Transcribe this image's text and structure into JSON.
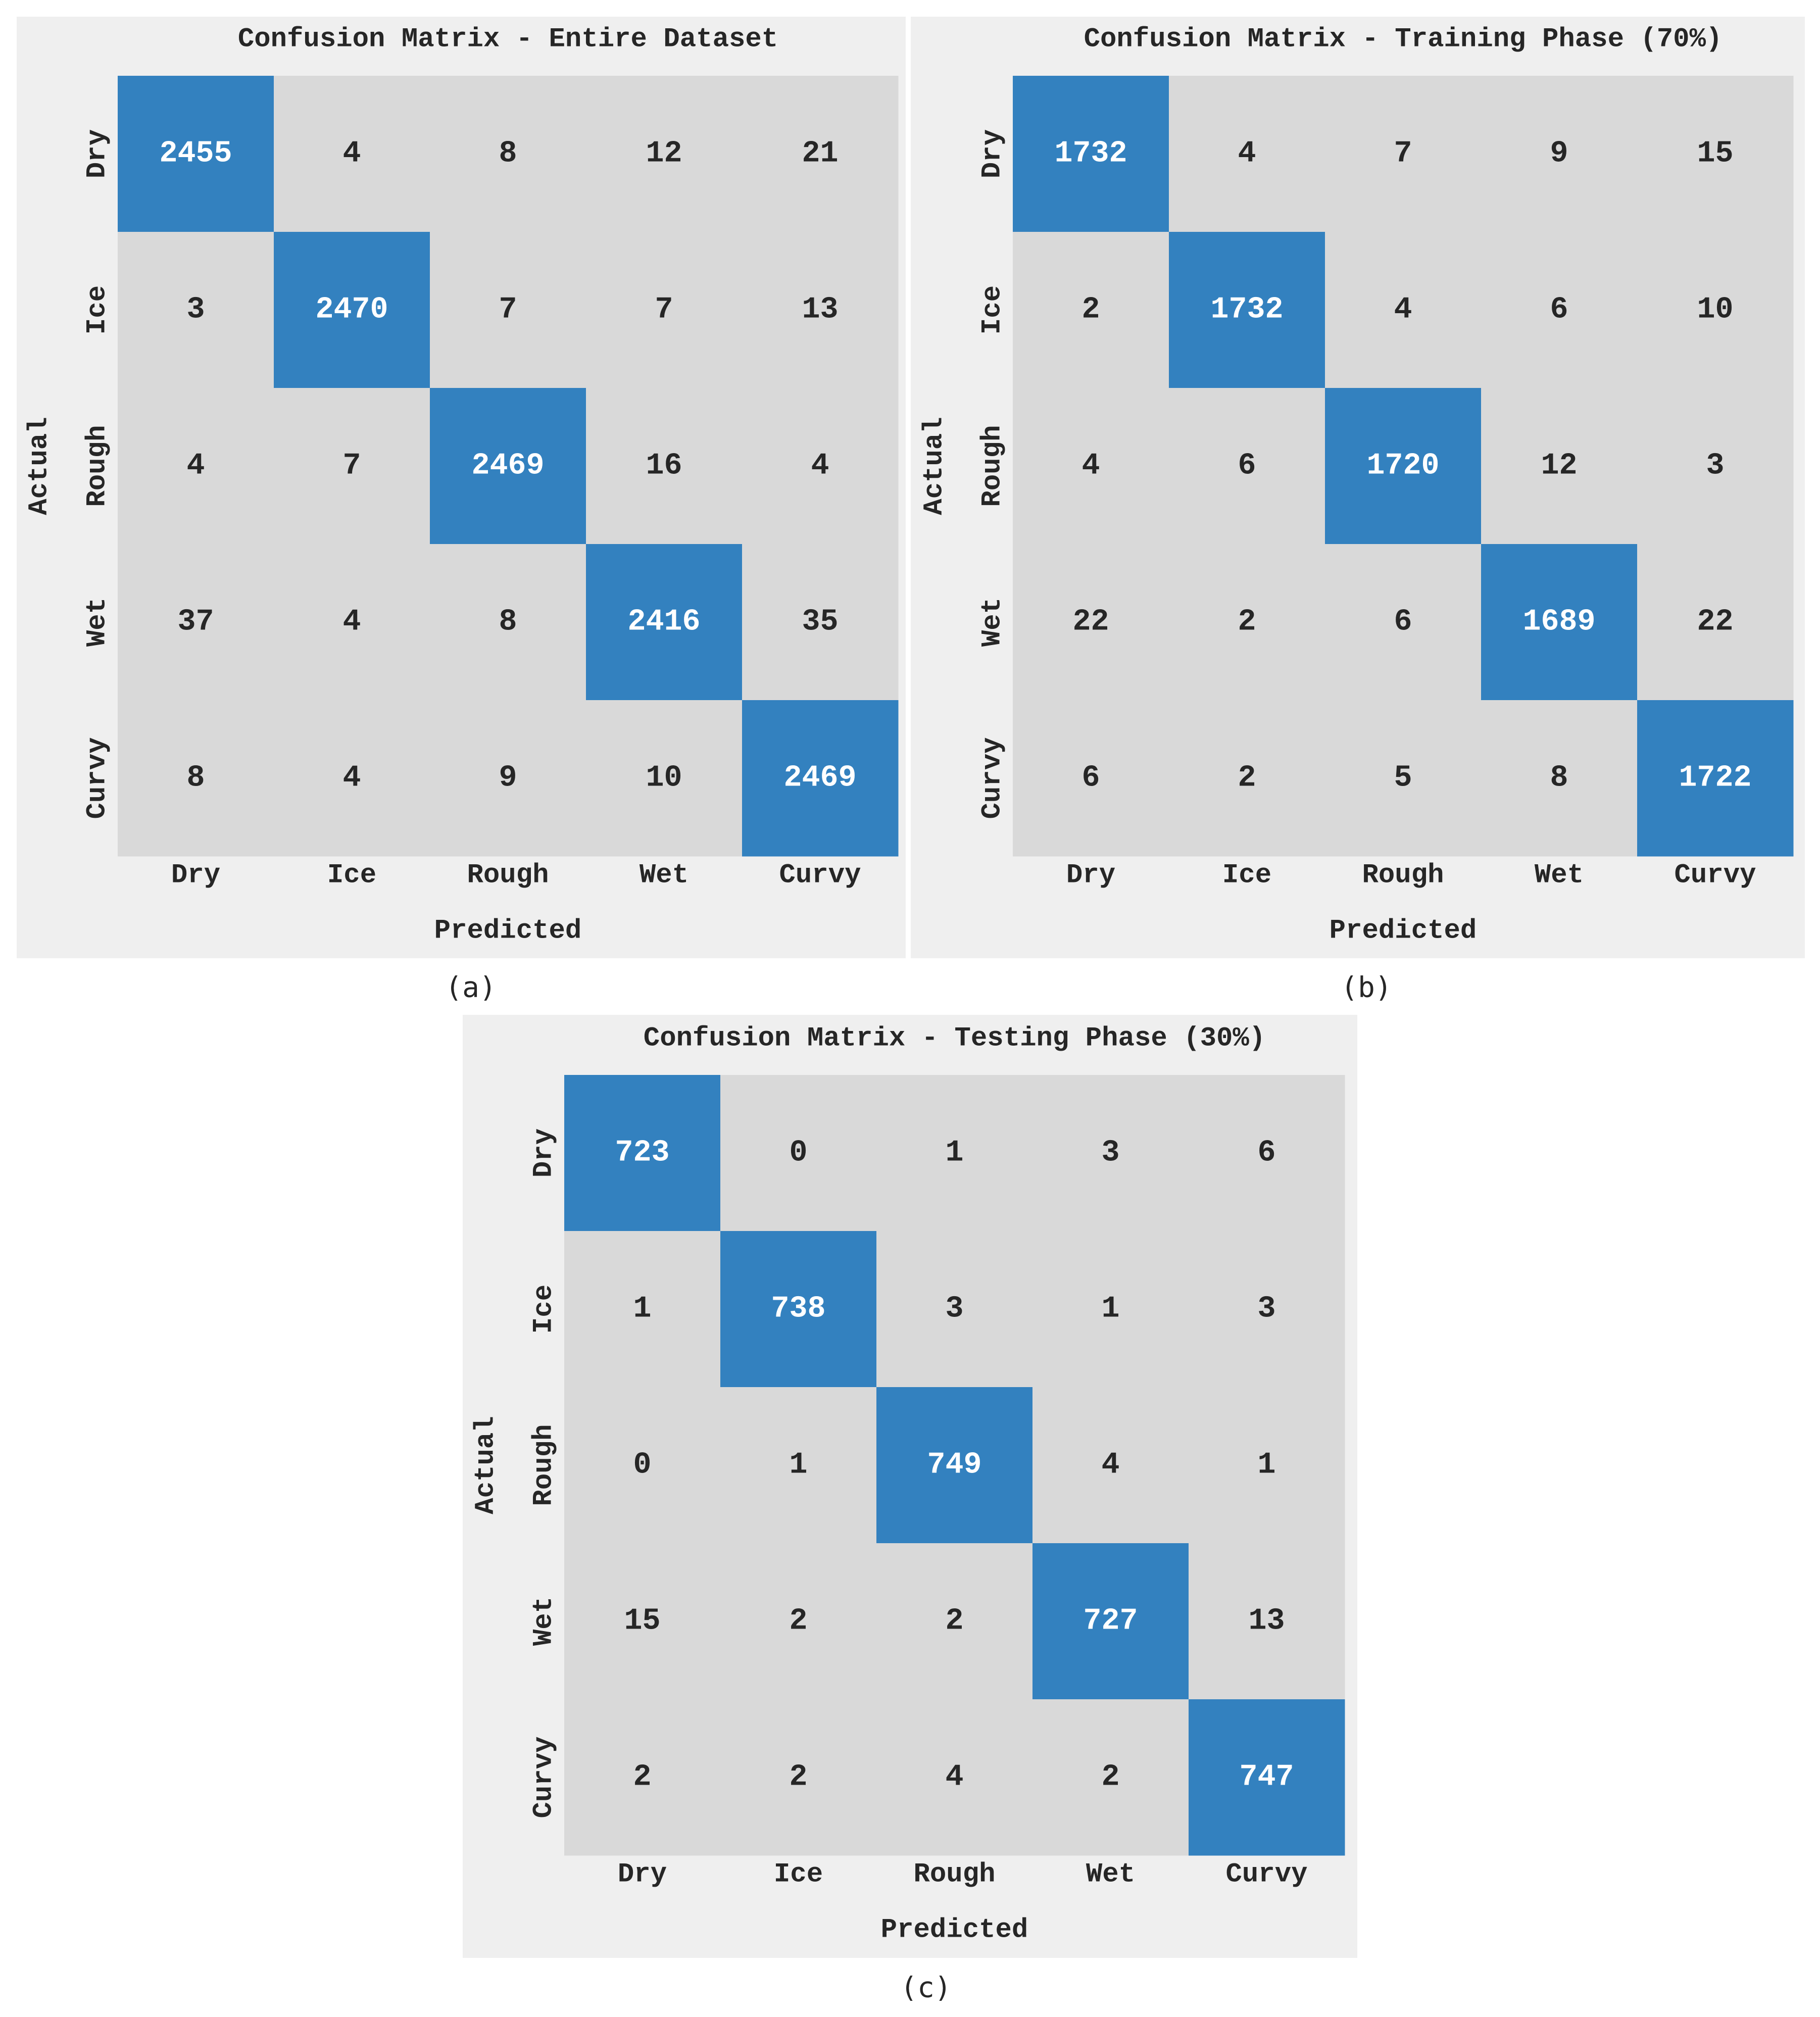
{
  "colors": {
    "background": "#ffffff",
    "panel_background": "#efefef",
    "off_diagonal": "#d9d9d9",
    "diagonal": "#3381bf",
    "text_dark": "#262626",
    "text_light": "#ffffff"
  },
  "chart_data": [
    {
      "type": "heatmap",
      "panel": "(a)",
      "title": "Confusion Matrix - Entire Dataset",
      "xlabel": "Predicted",
      "ylabel": "Actual",
      "x_categories": [
        "Dry",
        "Ice",
        "Rough",
        "Wet",
        "Curvy"
      ],
      "y_categories": [
        "Dry",
        "Ice",
        "Rough",
        "Wet",
        "Curvy"
      ],
      "values": [
        [
          2455,
          4,
          8,
          12,
          21
        ],
        [
          3,
          2470,
          7,
          7,
          13
        ],
        [
          4,
          7,
          2469,
          16,
          4
        ],
        [
          37,
          4,
          8,
          2416,
          35
        ],
        [
          8,
          4,
          9,
          10,
          2469
        ]
      ]
    },
    {
      "type": "heatmap",
      "panel": "(b)",
      "title": "Confusion Matrix - Training Phase (70%)",
      "xlabel": "Predicted",
      "ylabel": "Actual",
      "x_categories": [
        "Dry",
        "Ice",
        "Rough",
        "Wet",
        "Curvy"
      ],
      "y_categories": [
        "Dry",
        "Ice",
        "Rough",
        "Wet",
        "Curvy"
      ],
      "values": [
        [
          1732,
          4,
          7,
          9,
          15
        ],
        [
          2,
          1732,
          4,
          6,
          10
        ],
        [
          4,
          6,
          1720,
          12,
          3
        ],
        [
          22,
          2,
          6,
          1689,
          22
        ],
        [
          6,
          2,
          5,
          8,
          1722
        ]
      ]
    },
    {
      "type": "heatmap",
      "panel": "(c)",
      "title": "Confusion Matrix - Testing Phase (30%)",
      "xlabel": "Predicted",
      "ylabel": "Actual",
      "x_categories": [
        "Dry",
        "Ice",
        "Rough",
        "Wet",
        "Curvy"
      ],
      "y_categories": [
        "Dry",
        "Ice",
        "Rough",
        "Wet",
        "Curvy"
      ],
      "values": [
        [
          723,
          0,
          1,
          3,
          6
        ],
        [
          1,
          738,
          3,
          1,
          3
        ],
        [
          0,
          1,
          749,
          4,
          1
        ],
        [
          15,
          2,
          2,
          727,
          13
        ],
        [
          2,
          2,
          4,
          2,
          747
        ]
      ]
    }
  ]
}
